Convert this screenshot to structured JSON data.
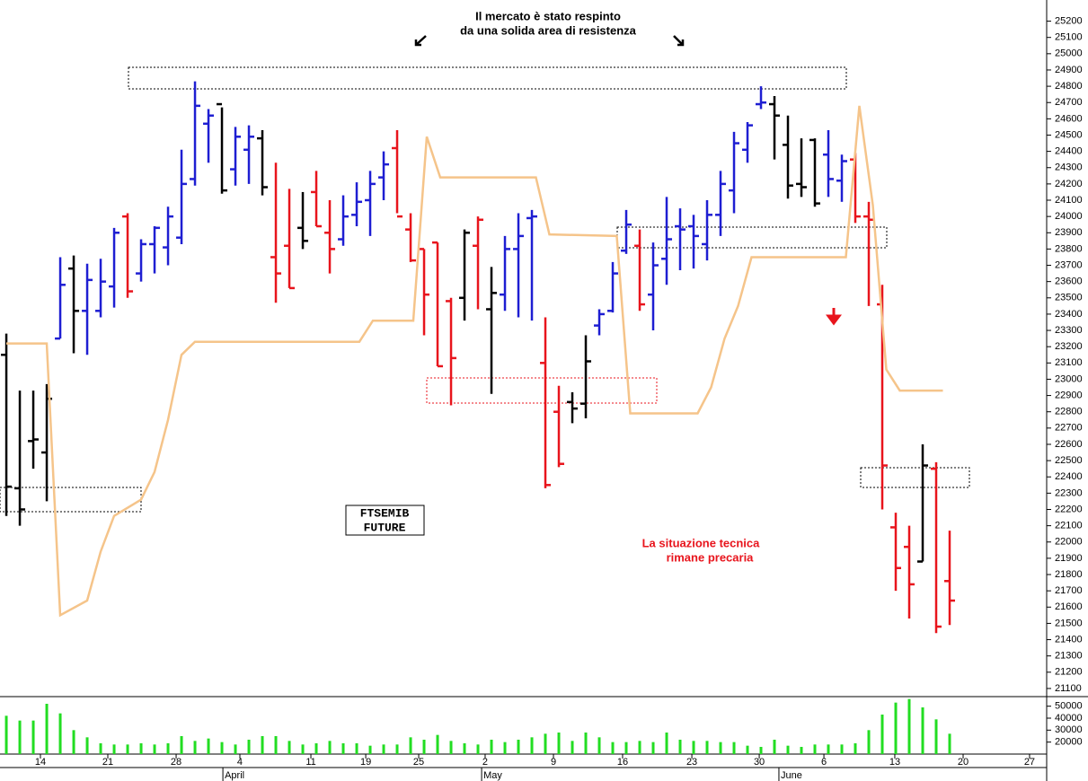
{
  "chart_data": [
    {
      "type": "ohlc",
      "annotations": [
        "Il mercato è stato respinto",
        "da una solida area di resistenza",
        "La situazione tecnica",
        "rimane precaria"
      ],
      "label": [
        "FTSEMIB",
        "FUTURE"
      ],
      "open": [
        23150,
        22330,
        22620,
        22550,
        23250,
        23680,
        23420,
        23420,
        23570,
        24000,
        23650,
        23830,
        23810,
        23870,
        24230,
        24570,
        24690,
        24290,
        24410,
        24480,
        23750,
        23820,
        23930,
        24150,
        23900,
        23860,
        24010,
        24100,
        24240,
        24420,
        23920,
        23800,
        23840,
        23480,
        23500,
        23820,
        23430,
        23520,
        23800,
        23990,
        23100,
        22800,
        22860,
        22850,
        23330,
        23420,
        23790,
        23820,
        23520,
        23740,
        23940,
        23940,
        23830,
        24010,
        24160,
        24410,
        24690,
        24690,
        24440,
        24200,
        24470,
        24380,
        24220,
        24350,
        24000,
        23460,
        22090,
        21970,
        21880,
        22450,
        21760
      ],
      "high": [
        23280,
        22930,
        22930,
        22970,
        23750,
        23760,
        23710,
        23740,
        23930,
        24020,
        23860,
        23940,
        24060,
        24410,
        24830,
        24660,
        24670,
        24550,
        24560,
        24530,
        24330,
        24170,
        24150,
        24280,
        24100,
        24130,
        24210,
        24280,
        24400,
        24530,
        24020,
        23800,
        23840,
        23500,
        23920,
        24000,
        23690,
        23880,
        24020,
        24040,
        23380,
        22960,
        22920,
        23270,
        23430,
        23720,
        24040,
        23920,
        23840,
        24120,
        24050,
        24010,
        24100,
        24280,
        24520,
        24580,
        24800,
        24740,
        24620,
        24480,
        24480,
        24530,
        24380,
        24390,
        24090,
        23580,
        22180,
        22100,
        22600,
        22490,
        22070
      ],
      "low": [
        22160,
        22100,
        22450,
        22250,
        23250,
        23160,
        23150,
        23380,
        23440,
        23500,
        23600,
        23650,
        23700,
        23830,
        24190,
        24330,
        24140,
        24190,
        24200,
        24130,
        23470,
        23560,
        23800,
        23940,
        23650,
        23820,
        23940,
        23880,
        24100,
        24020,
        23720,
        23270,
        23080,
        22840,
        23360,
        23430,
        22910,
        23420,
        23380,
        23360,
        22330,
        22460,
        22730,
        22760,
        23270,
        23410,
        23770,
        23420,
        23300,
        23580,
        23670,
        23680,
        23730,
        23880,
        24020,
        24330,
        24660,
        24350,
        24110,
        24120,
        24060,
        24120,
        24090,
        23960,
        23450,
        22200,
        21700,
        21530,
        21880,
        21440,
        21490
      ],
      "close": [
        22340,
        22200,
        22630,
        22880,
        23580,
        23420,
        23610,
        23600,
        23900,
        23540,
        23830,
        23930,
        24000,
        24200,
        24680,
        24620,
        24160,
        24490,
        24490,
        24180,
        23650,
        23560,
        23850,
        23940,
        23800,
        24000,
        24090,
        24200,
        24320,
        24000,
        23730,
        23520,
        23080,
        23130,
        23900,
        23980,
        23530,
        23800,
        23880,
        24000,
        22350,
        22480,
        22820,
        23110,
        23400,
        23650,
        23950,
        23460,
        23700,
        23860,
        23920,
        23880,
        24010,
        24200,
        24450,
        24560,
        24700,
        24620,
        24190,
        24180,
        24080,
        24230,
        24340,
        24000,
        23980,
        22470,
        21840,
        21740,
        22470,
        21480,
        21640
      ],
      "colors": [
        "#000000",
        "#000000",
        "#000000",
        "#000000",
        "#1e1ed2",
        "#000000",
        "#1e1ed2",
        "#1e1ed2",
        "#1e1ed2",
        "#e8141c",
        "#1e1ed2",
        "#1e1ed2",
        "#1e1ed2",
        "#1e1ed2",
        "#1e1ed2",
        "#1e1ed2",
        "#000000",
        "#1e1ed2",
        "#1e1ed2",
        "#000000",
        "#e8141c",
        "#e8141c",
        "#000000",
        "#e8141c",
        "#e8141c",
        "#1e1ed2",
        "#1e1ed2",
        "#1e1ed2",
        "#1e1ed2",
        "#e8141c",
        "#e8141c",
        "#e8141c",
        "#e8141c",
        "#e8141c",
        "#000000",
        "#e8141c",
        "#000000",
        "#1e1ed2",
        "#1e1ed2",
        "#1e1ed2",
        "#e8141c",
        "#e8141c",
        "#000000",
        "#000000",
        "#1e1ed2",
        "#1e1ed2",
        "#1e1ed2",
        "#e8141c",
        "#1e1ed2",
        "#1e1ed2",
        "#1e1ed2",
        "#1e1ed2",
        "#1e1ed2",
        "#1e1ed2",
        "#1e1ed2",
        "#1e1ed2",
        "#1e1ed2",
        "#000000",
        "#000000",
        "#000000",
        "#000000",
        "#1e1ed2",
        "#1e1ed2",
        "#e8141c",
        "#e8141c",
        "#e8141c",
        "#e8141c",
        "#e8141c",
        "#000000",
        "#e8141c",
        "#e8141c"
      ],
      "line": {
        "color": "#f5c48a",
        "x": [
          0,
          3,
          4,
          6,
          7,
          8,
          10,
          11,
          12,
          13,
          14,
          26.2,
          27.2,
          30.2,
          31.2,
          32.2,
          39.3,
          40.3,
          45.3,
          46.3,
          51.3,
          52.3,
          53.3,
          54.3,
          55.3,
          62.3,
          63.3,
          64.3,
          65.3,
          66.3,
          69.5
        ],
        "values": [
          23220,
          23220,
          21550,
          21640,
          21940,
          22160,
          22260,
          22430,
          22750,
          23150,
          23230,
          23230,
          23360,
          23360,
          24490,
          24240,
          24240,
          23890,
          23880,
          22790,
          22790,
          22950,
          23250,
          23450,
          23750,
          23750,
          24680,
          24070,
          23060,
          22930,
          22930
        ]
      },
      "xlim": [
        -0.47,
        77.2
      ],
      "xticks": [
        {
          "value": 2.53,
          "label": "14"
        },
        {
          "value": 7.53,
          "label": "21"
        },
        {
          "value": 12.6,
          "label": "28"
        },
        {
          "value": 17.33,
          "label": "4"
        },
        {
          "value": 22.6,
          "label": "11"
        },
        {
          "value": 26.67,
          "label": "19"
        },
        {
          "value": 30.6,
          "label": "25"
        },
        {
          "value": 35.53,
          "label": "2"
        },
        {
          "value": 40.6,
          "label": "9"
        },
        {
          "value": 45.73,
          "label": "16"
        },
        {
          "value": 50.87,
          "label": "23"
        },
        {
          "value": 55.87,
          "label": "30"
        },
        {
          "value": 60.67,
          "label": "6"
        },
        {
          "value": 65.93,
          "label": "13"
        },
        {
          "value": 71,
          "label": "20"
        },
        {
          "value": 75.93,
          "label": "27"
        }
      ],
      "months": [
        {
          "value": 16.07,
          "label": "April"
        },
        {
          "value": 35.27,
          "label": "May"
        },
        {
          "value": 57.33,
          "label": "June"
        }
      ],
      "ylim": [
        21050,
        25330
      ],
      "yticks": [
        21100,
        21200,
        21300,
        21400,
        21500,
        21600,
        21700,
        21800,
        21900,
        22000,
        22100,
        22200,
        22300,
        22400,
        22500,
        22600,
        22700,
        22800,
        22900,
        23000,
        23100,
        23200,
        23300,
        23400,
        23500,
        23600,
        23700,
        23800,
        23900,
        24000,
        24100,
        24200,
        24300,
        24400,
        24500,
        24600,
        24700,
        24800,
        24900,
        25000,
        25100,
        25200
      ]
    },
    {
      "type": "bar",
      "color": "#22dd22",
      "values": [
        42000,
        38000,
        38000,
        52000,
        44000,
        30000,
        24000,
        19000,
        18000,
        18000,
        19000,
        18000,
        19000,
        25000,
        21000,
        23000,
        20000,
        18000,
        22000,
        25000,
        25000,
        21000,
        18000,
        19000,
        21000,
        19000,
        19000,
        17000,
        18000,
        18000,
        24000,
        22000,
        26000,
        21000,
        19000,
        18000,
        22000,
        20000,
        22000,
        24000,
        27000,
        28000,
        21000,
        28000,
        24000,
        20000,
        20000,
        21000,
        20000,
        28000,
        22000,
        21000,
        21000,
        20000,
        20000,
        17000,
        16000,
        22000,
        17000,
        16000,
        18000,
        18000,
        18000,
        19000,
        30000,
        43000,
        53000,
        56000,
        49000,
        39000,
        27000
      ],
      "ylim": [
        10000,
        58000
      ],
      "yticks": [
        20000,
        30000,
        40000,
        50000
      ]
    }
  ]
}
